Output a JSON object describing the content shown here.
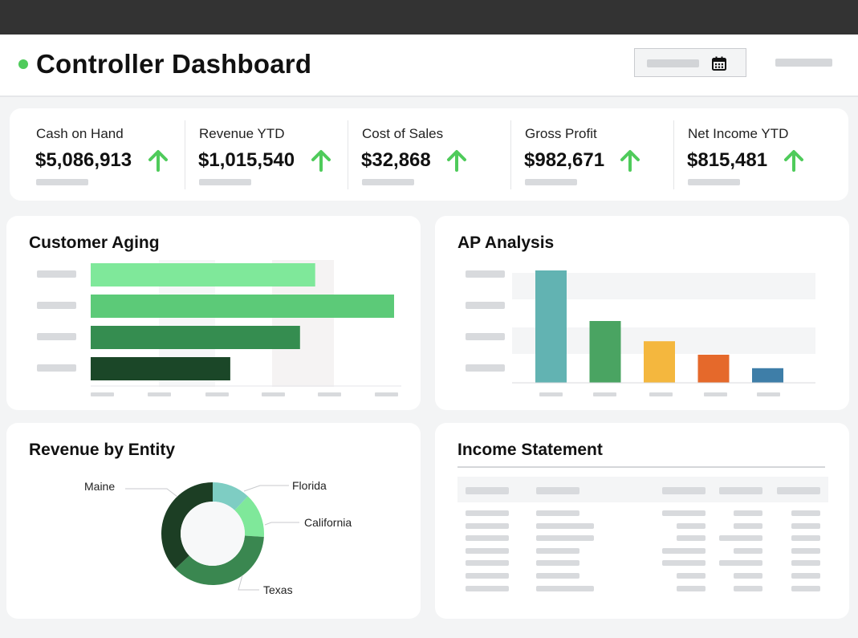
{
  "header": {
    "title": "Controller Dashboard",
    "status_color": "#4fcb5b",
    "date_picker_icon": "calendar-icon"
  },
  "kpis": [
    {
      "label": "Cash on Hand",
      "value": "$5,086,913",
      "trend": "up"
    },
    {
      "label": "Revenue YTD",
      "value": "$1,015,540",
      "trend": "up"
    },
    {
      "label": "Cost of Sales",
      "value": "$32,868",
      "trend": "up"
    },
    {
      "label": "Gross Profit",
      "value": "$982,671",
      "trend": "up"
    },
    {
      "label": "Net Income YTD",
      "value": "$815,481",
      "trend": "up"
    }
  ],
  "colors": {
    "trend_up": "#4fcb5b",
    "page_bg": "#f3f4f5",
    "top_bar": "#333333"
  },
  "customer_aging": {
    "title": "Customer Aging",
    "chart_data": {
      "type": "bar",
      "orientation": "horizontal",
      "values": [
        0.74,
        1.0,
        0.69,
        0.46
      ],
      "colors": [
        "#7fe89a",
        "#5cca78",
        "#358d50",
        "#1b4728"
      ]
    }
  },
  "ap_analysis": {
    "title": "AP Analysis",
    "chart_data": {
      "type": "bar",
      "values": [
        1.0,
        0.55,
        0.37,
        0.25,
        0.13
      ],
      "colors": [
        "#62b3b2",
        "#4aa462",
        "#f4b73e",
        "#e5692b",
        "#3e7ea8"
      ]
    }
  },
  "revenue_by_entity": {
    "title": "Revenue by Entity",
    "chart_data": {
      "type": "pie",
      "donut": true,
      "labels": [
        "Florida",
        "California",
        "Texas",
        "Maine"
      ],
      "values": [
        0.12,
        0.14,
        0.37,
        0.37
      ],
      "colors": [
        "#7ecdc3",
        "#7fe89a",
        "#3a8750",
        "#1c3e24"
      ]
    }
  },
  "income_statement": {
    "title": "Income Statement"
  }
}
